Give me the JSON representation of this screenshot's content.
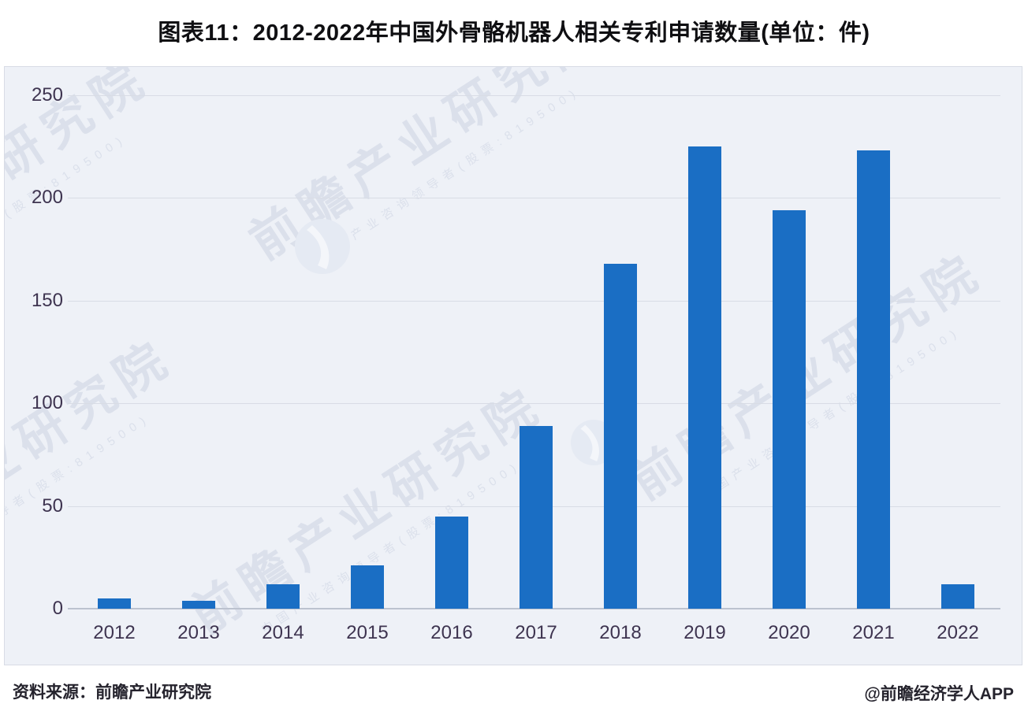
{
  "title": "图表11：2012-2022年中国外骨骼机器人相关专利申请数量(单位：件)",
  "source_label": "资料来源：前瞻产业研究院",
  "credit_label": "@前瞻经济学人APP",
  "watermark": {
    "big_text": "前瞻产业研究院",
    "small_text": "中国产业咨询领导者(股票:819500)",
    "logo": "globe-swoosh-icon"
  },
  "colors": {
    "bar": "#1a6ec4",
    "panel_bg": "#eef1f7",
    "panel_border": "#d8dce5",
    "gridline": "#d8dce5",
    "axis_line": "#bcc2cf",
    "tick_label": "#3e3450",
    "title_text": "#0f0f12",
    "footer_text": "#25232d",
    "watermark": "#ccd3e2"
  },
  "chart_data": {
    "type": "bar",
    "categories": [
      "2012",
      "2013",
      "2014",
      "2015",
      "2016",
      "2017",
      "2018",
      "2019",
      "2020",
      "2021",
      "2022"
    ],
    "values": [
      5,
      4,
      12,
      21,
      45,
      89,
      168,
      225,
      194,
      223,
      12
    ],
    "series": [
      {
        "name": "专利申请数量",
        "values": [
          5,
          4,
          12,
          21,
          45,
          89,
          168,
          225,
          194,
          223,
          12
        ]
      }
    ],
    "title": "图表11：2012-2022年中国外骨骼机器人相关专利申请数量(单位：件)",
    "xlabel": "",
    "ylabel": "",
    "unit": "件",
    "yticks": [
      250,
      200,
      150,
      100,
      50,
      0
    ],
    "ylim": [
      0,
      250
    ],
    "grid": true,
    "legend_position": "none"
  }
}
